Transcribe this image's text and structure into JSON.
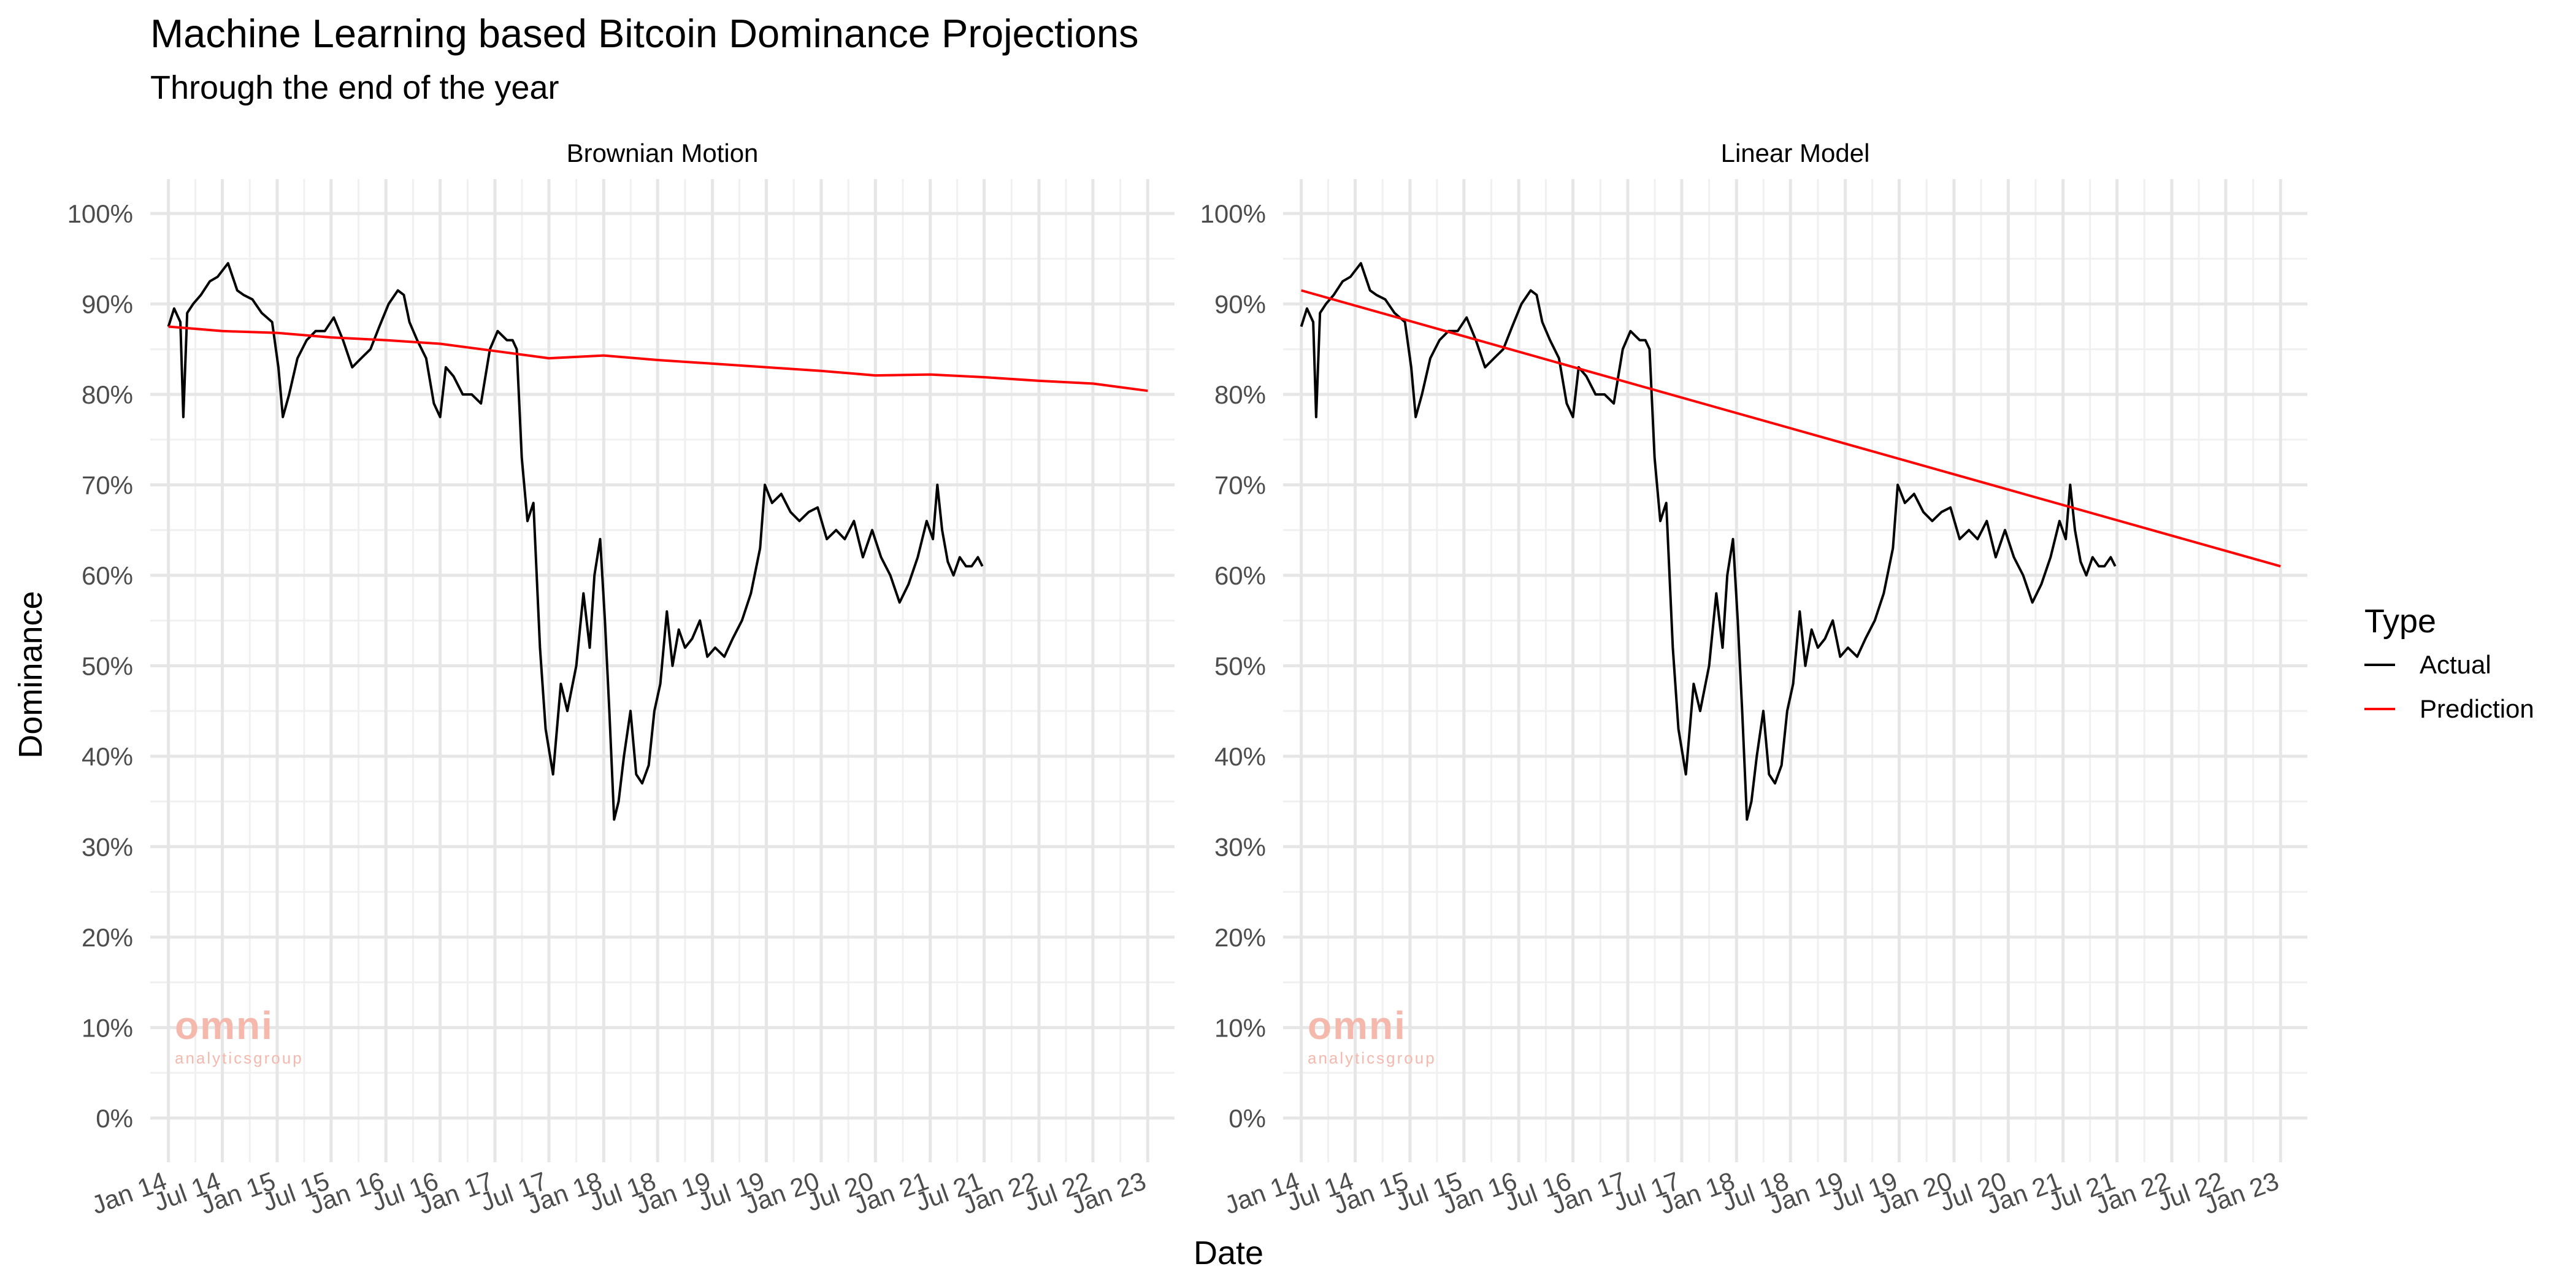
{
  "chart_data": {
    "type": "line",
    "title": "Machine Learning based Bitcoin Dominance Projections",
    "subtitle": "Through the end of the year",
    "xlabel": "Date",
    "ylabel": "Dominance",
    "x_scale": "date",
    "xlim": [
      "2013-11-01",
      "2023-04-01"
    ],
    "ylim": [
      0,
      100
    ],
    "y_ticks": [
      0,
      10,
      20,
      30,
      40,
      50,
      60,
      70,
      80,
      90,
      100
    ],
    "y_tick_labels": [
      "0%",
      "10%",
      "20%",
      "30%",
      "40%",
      "50%",
      "60%",
      "70%",
      "80%",
      "90%",
      "100%"
    ],
    "x_ticks": [
      "2014-01-01",
      "2014-07-01",
      "2015-01-01",
      "2015-07-01",
      "2016-01-01",
      "2016-07-01",
      "2017-01-01",
      "2017-07-01",
      "2018-01-01",
      "2018-07-01",
      "2019-01-01",
      "2019-07-01",
      "2020-01-01",
      "2020-07-01",
      "2021-01-01",
      "2021-07-01",
      "2022-01-01",
      "2022-07-01",
      "2023-01-01"
    ],
    "x_tick_labels": [
      "Jan 14",
      "Jul 14",
      "Jan 15",
      "Jul 15",
      "Jan 16",
      "Jul 16",
      "Jan 17",
      "Jul 17",
      "Jan 18",
      "Jul 18",
      "Jan 19",
      "Jul 19",
      "Jan 20",
      "Jul 20",
      "Jan 21",
      "Jul 21",
      "Jan 22",
      "Jul 22",
      "Jan 23"
    ],
    "grid": true,
    "legend": {
      "title": "Type",
      "position": "right",
      "entries": [
        {
          "label": "Actual",
          "color": "#000000"
        },
        {
          "label": "Prediction",
          "color": "#ff0000"
        }
      ]
    },
    "actual": {
      "name": "Actual",
      "color": "#000000",
      "x": [
        "2014-01-01",
        "2014-01-20",
        "2014-02-10",
        "2014-02-20",
        "2014-03-05",
        "2014-03-25",
        "2014-04-20",
        "2014-05-20",
        "2014-06-15",
        "2014-07-20",
        "2014-08-20",
        "2014-09-10",
        "2014-10-10",
        "2014-11-10",
        "2014-12-15",
        "2015-01-05",
        "2015-01-20",
        "2015-02-10",
        "2015-03-10",
        "2015-04-10",
        "2015-05-10",
        "2015-06-10",
        "2015-07-10",
        "2015-08-10",
        "2015-09-10",
        "2015-10-10",
        "2015-11-10",
        "2015-12-10",
        "2016-01-10",
        "2016-02-10",
        "2016-03-01",
        "2016-03-20",
        "2016-04-15",
        "2016-05-15",
        "2016-06-10",
        "2016-07-01",
        "2016-07-20",
        "2016-08-15",
        "2016-09-15",
        "2016-10-15",
        "2016-11-15",
        "2016-12-15",
        "2017-01-10",
        "2017-02-10",
        "2017-03-01",
        "2017-03-15",
        "2017-04-01",
        "2017-04-20",
        "2017-05-10",
        "2017-06-01",
        "2017-06-20",
        "2017-07-15",
        "2017-08-10",
        "2017-09-01",
        "2017-10-01",
        "2017-10-25",
        "2017-11-15",
        "2017-12-01",
        "2017-12-20",
        "2018-01-05",
        "2018-01-20",
        "2018-02-05",
        "2018-02-20",
        "2018-03-10",
        "2018-04-01",
        "2018-04-20",
        "2018-05-10",
        "2018-06-01",
        "2018-06-20",
        "2018-07-10",
        "2018-08-01",
        "2018-08-20",
        "2018-09-10",
        "2018-10-01",
        "2018-10-25",
        "2018-11-20",
        "2018-12-15",
        "2019-01-10",
        "2019-02-10",
        "2019-03-10",
        "2019-04-10",
        "2019-05-10",
        "2019-06-10",
        "2019-06-26",
        "2019-07-20",
        "2019-08-20",
        "2019-09-20",
        "2019-10-20",
        "2019-11-20",
        "2019-12-20",
        "2020-01-20",
        "2020-02-20",
        "2020-03-20",
        "2020-04-20",
        "2020-05-20",
        "2020-06-20",
        "2020-07-20",
        "2020-08-20",
        "2020-09-20",
        "2020-10-20",
        "2020-11-20",
        "2020-12-20",
        "2021-01-10",
        "2021-01-25",
        "2021-02-10",
        "2021-03-01",
        "2021-03-20",
        "2021-04-10",
        "2021-05-01",
        "2021-05-20",
        "2021-06-10",
        "2021-06-25"
      ],
      "values": [
        87.5,
        89.5,
        88.0,
        77.5,
        89.0,
        90.0,
        91.0,
        92.5,
        93.0,
        94.5,
        91.5,
        91.0,
        90.5,
        89.0,
        88.0,
        83.0,
        77.5,
        80.0,
        84.0,
        86.0,
        87.0,
        87.0,
        88.5,
        86.0,
        83.0,
        84.0,
        85.0,
        87.5,
        90.0,
        91.5,
        91.0,
        88.0,
        86.0,
        84.0,
        79.0,
        77.5,
        83.0,
        82.0,
        80.0,
        80.0,
        79.0,
        85.0,
        87.0,
        86.0,
        86.0,
        85.0,
        73.0,
        66.0,
        68.0,
        52.0,
        43.0,
        38.0,
        48.0,
        45.0,
        50.0,
        58.0,
        52.0,
        60.0,
        64.0,
        55.0,
        45.0,
        33.0,
        35.0,
        40.0,
        45.0,
        38.0,
        37.0,
        39.0,
        45.0,
        48.0,
        56.0,
        50.0,
        54.0,
        52.0,
        53.0,
        55.0,
        51.0,
        52.0,
        51.0,
        53.0,
        55.0,
        58.0,
        63.0,
        70.0,
        68.0,
        69.0,
        67.0,
        66.0,
        67.0,
        67.5,
        64.0,
        65.0,
        64.0,
        66.0,
        62.0,
        65.0,
        62.0,
        60.0,
        57.0,
        59.0,
        62.0,
        66.0,
        64.0,
        70.0,
        65.0,
        61.5,
        60.0,
        62.0,
        61.0,
        61.0,
        62.0,
        61.0
      ]
    },
    "facets": [
      {
        "name": "Brownian Motion",
        "prediction": {
          "name": "Prediction",
          "color": "#ff0000",
          "x": [
            "2014-01-01",
            "2014-07-01",
            "2015-01-01",
            "2015-07-01",
            "2016-01-01",
            "2016-07-01",
            "2017-01-01",
            "2017-07-01",
            "2018-01-01",
            "2018-07-01",
            "2019-01-01",
            "2019-07-01",
            "2020-01-01",
            "2020-07-01",
            "2021-01-01",
            "2021-07-01",
            "2022-01-01",
            "2022-07-01",
            "2023-01-01"
          ],
          "values": [
            87.5,
            87.0,
            86.8,
            86.3,
            86.0,
            85.6,
            84.8,
            84.0,
            84.3,
            83.8,
            83.4,
            83.0,
            82.6,
            82.1,
            82.2,
            81.9,
            81.5,
            81.2,
            80.4
          ]
        }
      },
      {
        "name": "Linear Model",
        "prediction": {
          "name": "Prediction",
          "color": "#ff0000",
          "x": [
            "2014-01-01",
            "2023-01-01"
          ],
          "values": [
            91.5,
            61.0
          ]
        }
      }
    ]
  }
}
